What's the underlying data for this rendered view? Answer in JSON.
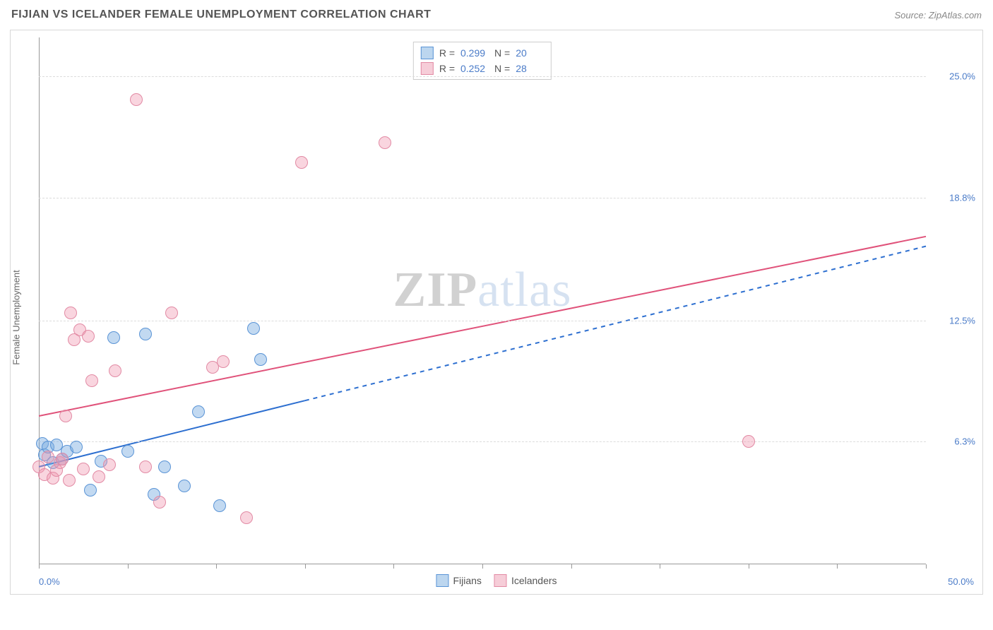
{
  "header": {
    "title": "FIJIAN VS ICELANDER FEMALE UNEMPLOYMENT CORRELATION CHART",
    "source": "Source: ZipAtlas.com"
  },
  "chart": {
    "type": "scatter",
    "y_axis_label": "Female Unemployment",
    "background_color": "#ffffff",
    "grid_color": "#dcdcdc",
    "axis_color": "#999999",
    "xlim": [
      0,
      50
    ],
    "ylim": [
      0,
      27
    ],
    "x_tick_positions": [
      0,
      5,
      10,
      15,
      20,
      25,
      30,
      35,
      40,
      45,
      50
    ],
    "x_tick_labels": {
      "min": "0.0%",
      "max": "50.0%"
    },
    "y_ticks": [
      {
        "value": 6.3,
        "label": "6.3%"
      },
      {
        "value": 12.5,
        "label": "12.5%"
      },
      {
        "value": 18.8,
        "label": "18.8%"
      },
      {
        "value": 25.0,
        "label": "25.0%"
      }
    ],
    "marker_radius": 9,
    "marker_border_width": 1.5,
    "series": [
      {
        "name": "Fijians",
        "fill_color": "rgba(120,170,225,0.45)",
        "stroke_color": "#5a94d6",
        "swatch_fill": "#bcd6ef",
        "swatch_border": "#5a94d6",
        "r_value": "0.299",
        "n_value": "20",
        "trend": {
          "color": "#2d6fd0",
          "width": 2,
          "solid_from_x": 0,
          "solid_to_x": 15,
          "dash_to_x": 50,
          "y_at_x0": 5.0,
          "y_at_x50": 16.3
        },
        "points": [
          {
            "x": 0.2,
            "y": 6.2
          },
          {
            "x": 0.3,
            "y": 5.6
          },
          {
            "x": 0.5,
            "y": 6.0
          },
          {
            "x": 0.8,
            "y": 5.2
          },
          {
            "x": 1.0,
            "y": 6.1
          },
          {
            "x": 1.3,
            "y": 5.4
          },
          {
            "x": 1.6,
            "y": 5.8
          },
          {
            "x": 2.1,
            "y": 6.0
          },
          {
            "x": 2.9,
            "y": 3.8
          },
          {
            "x": 3.5,
            "y": 5.3
          },
          {
            "x": 4.2,
            "y": 11.6
          },
          {
            "x": 5.0,
            "y": 5.8
          },
          {
            "x": 6.5,
            "y": 3.6
          },
          {
            "x": 7.1,
            "y": 5.0
          },
          {
            "x": 8.2,
            "y": 4.0
          },
          {
            "x": 9.0,
            "y": 7.8
          },
          {
            "x": 10.2,
            "y": 3.0
          },
          {
            "x": 12.1,
            "y": 12.1
          },
          {
            "x": 12.5,
            "y": 10.5
          },
          {
            "x": 6.0,
            "y": 11.8
          }
        ]
      },
      {
        "name": "Icelanders",
        "fill_color": "rgba(240,150,175,0.4)",
        "stroke_color": "#e28aa4",
        "swatch_fill": "#f6cdd8",
        "swatch_border": "#e28aa4",
        "r_value": "0.252",
        "n_value": "28",
        "trend": {
          "color": "#e0527a",
          "width": 2,
          "solid_from_x": 0,
          "solid_to_x": 50,
          "dash_to_x": 50,
          "y_at_x0": 7.6,
          "y_at_x50": 16.8
        },
        "points": [
          {
            "x": 0.0,
            "y": 5.0
          },
          {
            "x": 0.3,
            "y": 4.6
          },
          {
            "x": 0.5,
            "y": 5.5
          },
          {
            "x": 0.8,
            "y": 4.4
          },
          {
            "x": 1.0,
            "y": 4.8
          },
          {
            "x": 1.2,
            "y": 5.2
          },
          {
            "x": 1.5,
            "y": 7.6
          },
          {
            "x": 1.7,
            "y": 4.3
          },
          {
            "x": 1.8,
            "y": 12.9
          },
          {
            "x": 2.0,
            "y": 11.5
          },
          {
            "x": 2.3,
            "y": 12.0
          },
          {
            "x": 2.5,
            "y": 4.9
          },
          {
            "x": 2.8,
            "y": 11.7
          },
          {
            "x": 3.0,
            "y": 9.4
          },
          {
            "x": 3.4,
            "y": 4.5
          },
          {
            "x": 4.0,
            "y": 5.1
          },
          {
            "x": 4.3,
            "y": 9.9
          },
          {
            "x": 5.5,
            "y": 23.8
          },
          {
            "x": 6.0,
            "y": 5.0
          },
          {
            "x": 6.8,
            "y": 3.2
          },
          {
            "x": 7.5,
            "y": 12.9
          },
          {
            "x": 9.8,
            "y": 10.1
          },
          {
            "x": 10.4,
            "y": 10.4
          },
          {
            "x": 11.7,
            "y": 2.4
          },
          {
            "x": 14.8,
            "y": 20.6
          },
          {
            "x": 19.5,
            "y": 21.6
          },
          {
            "x": 40.0,
            "y": 6.3
          },
          {
            "x": 1.3,
            "y": 5.4
          }
        ]
      }
    ],
    "watermark": {
      "part1": "ZIP",
      "part2": "atlas"
    }
  }
}
